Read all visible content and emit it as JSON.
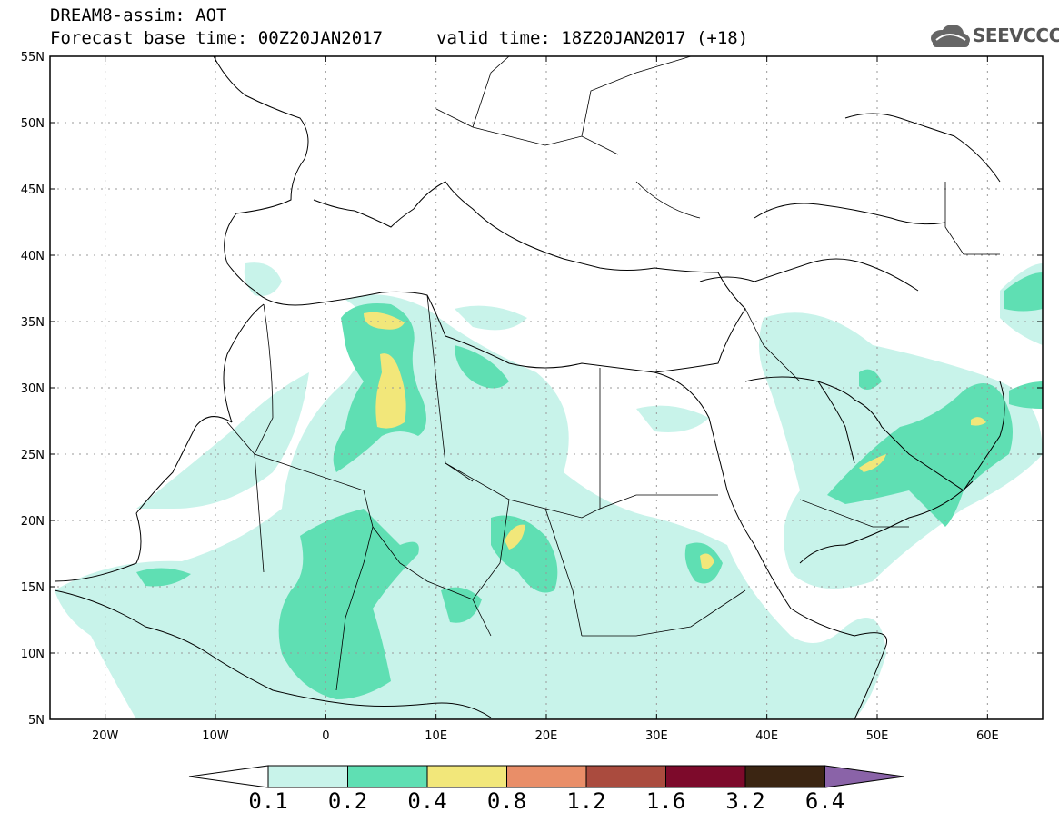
{
  "header": {
    "title": "DREAM8-assim: AOT",
    "forecast_base": "Forecast base time: 00Z20JAN2017",
    "valid_time": "valid time: 18Z20JAN2017 (+18)",
    "logo_text": "SEEVCCC"
  },
  "map": {
    "lat_labels": [
      "55N",
      "50N",
      "45N",
      "40N",
      "35N",
      "30N",
      "25N",
      "20N",
      "15N",
      "10N",
      "5N"
    ],
    "lon_labels": [
      "20W",
      "10W",
      "0",
      "10E",
      "20E",
      "30E",
      "40E",
      "50E",
      "60E"
    ],
    "extent": {
      "lon_min": -25,
      "lon_max": 65,
      "lat_min": 5,
      "lat_max": 55
    }
  },
  "legend": {
    "variable": "AOT",
    "levels": [
      "0.1",
      "0.2",
      "0.4",
      "0.8",
      "1.2",
      "1.6",
      "3.2",
      "6.4"
    ],
    "colors": [
      "#c8f3ea",
      "#5fdfb3",
      "#f2e77a",
      "#e98e68",
      "#aa4b3e",
      "#7d0a2b",
      "#3b2512",
      "#8a63a8"
    ]
  }
}
